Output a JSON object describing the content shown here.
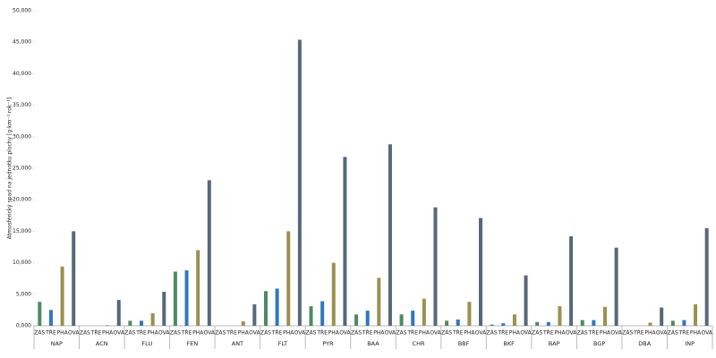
{
  "chart_data": {
    "type": "bar",
    "y_label": "Atmosférický spad na jednotku plochy [g·km⁻²·rok⁻¹]",
    "categories": [
      "NAP",
      "ACN",
      "FLU",
      "FEN",
      "ANT",
      "FLT",
      "PYR",
      "BAA",
      "CHR",
      "BBF",
      "BKF",
      "BAP",
      "BGP",
      "DBA",
      "INP"
    ],
    "series": [
      {
        "name": "ZÁS",
        "color": "#4e8a63",
        "values": [
          3800,
          0,
          800,
          8600,
          0,
          5500,
          3100,
          1800,
          1800,
          800,
          200,
          600,
          900,
          0,
          800
        ]
      },
      {
        "name": "TŘE",
        "color": "#2f78c0",
        "values": [
          2500,
          0,
          800,
          8800,
          0,
          5900,
          3900,
          2400,
          2400,
          1000,
          400,
          600,
          900,
          0,
          900
        ]
      },
      {
        "name": "PHA",
        "color": "#9a9150",
        "values": [
          9400,
          100,
          2000,
          12000,
          700,
          15000,
          10000,
          7600,
          4300,
          3800,
          1800,
          3100,
          3000,
          500,
          3400
        ]
      },
      {
        "name": "OVA",
        "color": "#56687a",
        "values": [
          15000,
          4100,
          5400,
          23100,
          3400,
          45400,
          26800,
          28800,
          18800,
          17100,
          8000,
          14200,
          12400,
          2900,
          15500
        ]
      }
    ],
    "ylim": [
      0,
      50000
    ],
    "yticks": [
      {
        "value": 0,
        "label": "0,000"
      },
      {
        "value": 5000,
        "label": "5,000"
      },
      {
        "value": 10000,
        "label": "10,000"
      },
      {
        "value": 15000,
        "label": "15,000"
      },
      {
        "value": 20000,
        "label": "20,000"
      },
      {
        "value": 25000,
        "label": "25,000"
      },
      {
        "value": 30000,
        "label": "30,000"
      },
      {
        "value": 35000,
        "label": "35,000"
      },
      {
        "value": 40000,
        "label": "40,000"
      },
      {
        "value": 45000,
        "label": "45,000"
      },
      {
        "value": 50000,
        "label": "50,000"
      }
    ],
    "grid": false
  }
}
